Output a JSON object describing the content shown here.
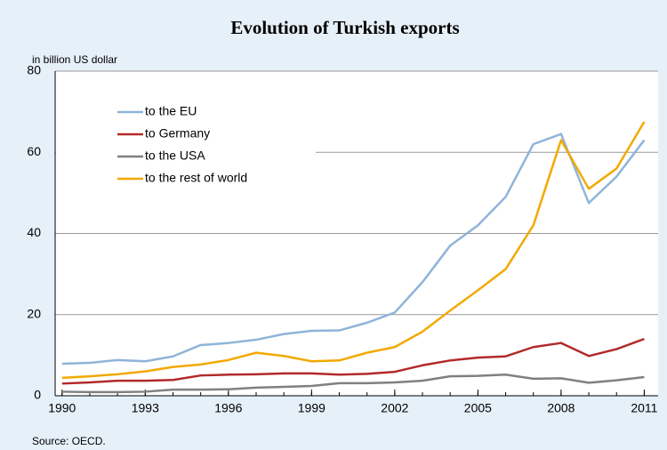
{
  "chart_data": {
    "type": "line",
    "title": "Evolution of Turkish exports",
    "ylabel": "in billion US dollar",
    "source": "Source: OECD.",
    "x": [
      1990,
      1991,
      1992,
      1993,
      1994,
      1995,
      1996,
      1997,
      1998,
      1999,
      2000,
      2001,
      2002,
      2003,
      2004,
      2005,
      2006,
      2007,
      2008,
      2009,
      2010,
      2011
    ],
    "series": [
      {
        "name": "to the EU",
        "color": "#8fb4d9",
        "values": [
          7.9,
          8.1,
          8.8,
          8.5,
          9.7,
          12.5,
          13.0,
          13.8,
          15.2,
          16.0,
          16.1,
          18.0,
          20.5,
          28.0,
          37.0,
          42.0,
          49.0,
          62.0,
          64.5,
          47.5,
          54.0,
          63.0
        ]
      },
      {
        "name": "to Germany",
        "color": "#b22a2a",
        "values": [
          3.0,
          3.3,
          3.7,
          3.7,
          3.9,
          5.0,
          5.2,
          5.3,
          5.5,
          5.5,
          5.2,
          5.4,
          5.9,
          7.5,
          8.7,
          9.4,
          9.7,
          12.0,
          13.0,
          9.8,
          11.5,
          14.0
        ]
      },
      {
        "name": "to the USA",
        "color": "#808080",
        "values": [
          1.0,
          0.9,
          0.9,
          1.0,
          1.5,
          1.5,
          1.6,
          2.0,
          2.2,
          2.4,
          3.1,
          3.1,
          3.3,
          3.7,
          4.8,
          4.9,
          5.2,
          4.2,
          4.3,
          3.2,
          3.8,
          4.6
        ]
      },
      {
        "name": "to the rest of world",
        "color": "#f2a900",
        "values": [
          4.4,
          4.8,
          5.3,
          6.0,
          7.1,
          7.7,
          8.8,
          10.6,
          9.8,
          8.5,
          8.7,
          10.6,
          12.0,
          15.8,
          21.0,
          26.0,
          31.2,
          42.0,
          63.0,
          51.0,
          56.0,
          67.5
        ]
      }
    ],
    "xlim": [
      1989.75,
      2011.5
    ],
    "xticks": [
      1990,
      1993,
      1996,
      1999,
      2002,
      2005,
      2008,
      2011
    ],
    "ylim": [
      0,
      80
    ],
    "yticks": [
      0,
      20,
      40,
      60,
      80
    ],
    "grid": true,
    "legend": "upper-left"
  }
}
